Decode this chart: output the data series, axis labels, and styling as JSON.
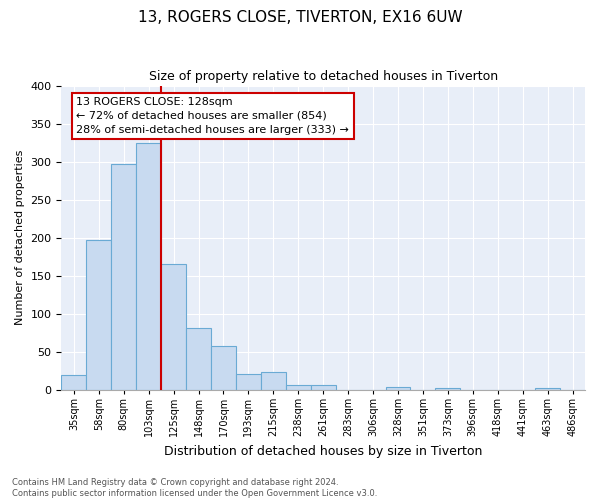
{
  "title": "13, ROGERS CLOSE, TIVERTON, EX16 6UW",
  "subtitle": "Size of property relative to detached houses in Tiverton",
  "xlabel": "Distribution of detached houses by size in Tiverton",
  "ylabel": "Number of detached properties",
  "footer_line1": "Contains HM Land Registry data © Crown copyright and database right 2024.",
  "footer_line2": "Contains public sector information licensed under the Open Government Licence v3.0.",
  "bins": [
    "35sqm",
    "58sqm",
    "80sqm",
    "103sqm",
    "125sqm",
    "148sqm",
    "170sqm",
    "193sqm",
    "215sqm",
    "238sqm",
    "261sqm",
    "283sqm",
    "306sqm",
    "328sqm",
    "351sqm",
    "373sqm",
    "396sqm",
    "418sqm",
    "441sqm",
    "463sqm",
    "486sqm"
  ],
  "values": [
    20,
    197,
    297,
    325,
    165,
    81,
    57,
    21,
    23,
    7,
    6,
    0,
    0,
    4,
    0,
    2,
    0,
    0,
    0,
    3,
    0
  ],
  "bar_color": "#c8daf0",
  "bar_edge_color": "#6aaad4",
  "property_line_index": 4,
  "property_line_color": "#cc0000",
  "annotation_title": "13 ROGERS CLOSE: 128sqm",
  "annotation_line1": "← 72% of detached houses are smaller (854)",
  "annotation_line2": "28% of semi-detached houses are larger (333) →",
  "annotation_box_color": "#ffffff",
  "annotation_box_edge": "#cc0000",
  "ylim": [
    0,
    400
  ],
  "yticks": [
    0,
    50,
    100,
    150,
    200,
    250,
    300,
    350,
    400
  ],
  "background_color": "#e8eef8",
  "grid_color": "#ffffff"
}
